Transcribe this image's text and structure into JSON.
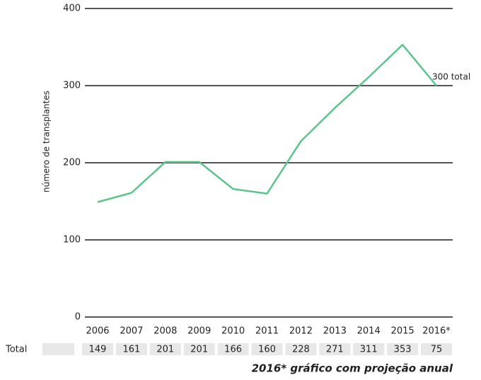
{
  "chart_data": {
    "type": "line",
    "y_label": "número de transplantes",
    "categories": [
      "2006",
      "2007",
      "2008",
      "2009",
      "2010",
      "2011",
      "2012",
      "2013",
      "2014",
      "2015",
      "2016*"
    ],
    "series": [
      {
        "name": "Total",
        "color": "#5cc48a",
        "values": [
          149,
          161,
          201,
          201,
          166,
          160,
          228,
          271,
          311,
          353,
          300
        ]
      }
    ],
    "annotation": "300 total",
    "ylim": [
      0,
      400
    ],
    "yticks": [
      0,
      100,
      200,
      300,
      400
    ],
    "grid": true,
    "table": {
      "row_label": "Total",
      "values": [
        149,
        161,
        201,
        201,
        166,
        160,
        228,
        271,
        311,
        353,
        75
      ]
    },
    "footnote": "2016* gráfico com projeção anual"
  }
}
